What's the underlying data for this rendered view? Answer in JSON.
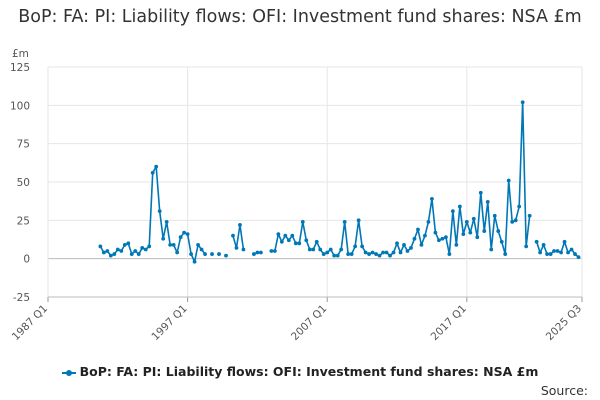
{
  "title": "BoP: FA: PI: Liability flows: OFI: Investment fund shares: NSA £m",
  "source_label": "Source:",
  "chart_data": {
    "type": "line",
    "title": "BoP: FA: PI: Liability flows: OFI: Investment fund shares: NSA £m",
    "ylabel": "£m",
    "xlabel": "",
    "ylim": [
      -25,
      125
    ],
    "yticks": [
      -25,
      0,
      25,
      50,
      75,
      100,
      125
    ],
    "xlim": [
      0,
      153
    ],
    "xticks": [
      {
        "label": "1987 Q1",
        "i": 0
      },
      {
        "label": "1997 Q1",
        "i": 40
      },
      {
        "label": "2007 Q1",
        "i": 80
      },
      {
        "label": "2017 Q1",
        "i": 120
      },
      {
        "label": "2025 Q3",
        "i": 153
      }
    ],
    "color": "#0077b6",
    "series": [
      {
        "name": "BoP: FA: PI: Liability flows: OFI: Investment fund shares: NSA £m",
        "start_quarter": "1987 Q1",
        "values": [
          null,
          null,
          null,
          null,
          null,
          null,
          null,
          null,
          null,
          null,
          null,
          null,
          null,
          null,
          null,
          8,
          4,
          5,
          2,
          3,
          6,
          5,
          9,
          10,
          3,
          5,
          3,
          7,
          6,
          8,
          56,
          60,
          31,
          13,
          24,
          9,
          9,
          4,
          14,
          17,
          16,
          3,
          -2,
          9,
          6,
          3,
          null,
          3,
          null,
          3,
          null,
          2,
          null,
          15,
          7,
          22,
          6,
          null,
          null,
          3,
          4,
          4,
          null,
          null,
          5,
          5,
          16,
          11,
          15,
          12,
          15,
          10,
          10,
          24,
          12,
          6,
          6,
          11,
          6,
          3,
          4,
          6,
          2,
          2,
          6,
          24,
          3,
          3,
          8,
          25,
          8,
          4,
          3,
          4,
          3,
          2,
          4,
          4,
          2,
          4,
          10,
          4,
          9,
          5,
          7,
          13,
          19,
          9,
          15,
          24,
          39,
          17,
          12,
          13,
          14,
          3,
          31,
          9,
          34,
          16,
          24,
          17,
          26,
          14,
          43,
          18,
          37,
          6,
          28,
          18,
          11,
          3,
          51,
          24,
          25,
          34,
          102,
          8,
          28,
          null,
          11,
          4,
          9,
          3,
          3,
          5,
          5,
          4,
          11,
          4,
          6,
          3,
          1
        ]
      }
    ]
  }
}
